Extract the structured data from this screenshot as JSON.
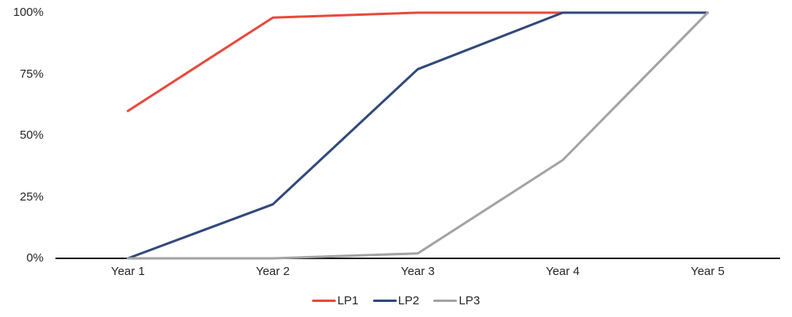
{
  "chart_data": {
    "type": "line",
    "title": "",
    "xlabel": "",
    "ylabel": "",
    "categories": [
      "Year 1",
      "Year 2",
      "Year 3",
      "Year 4",
      "Year 5"
    ],
    "series": [
      {
        "name": "LP1",
        "color": "#E74A3B",
        "values": [
          60,
          98,
          100,
          100,
          100
        ]
      },
      {
        "name": "LP2",
        "color": "#31497A",
        "values": [
          0,
          22,
          77,
          100,
          100
        ]
      },
      {
        "name": "LP3",
        "color": "#A3A3A3",
        "values": [
          0,
          0,
          2,
          40,
          100
        ]
      }
    ],
    "y_ticks": [
      "100%",
      "75%",
      "50%",
      "25%",
      "0%"
    ],
    "y_tick_values": [
      100,
      75,
      50,
      25,
      0
    ],
    "ylim": [
      0,
      100
    ],
    "grid": false,
    "legend_position": "bottom",
    "axis_color": "#1A1A1A",
    "text_color": "#262626",
    "background_color": "#FFFFFF",
    "line_width": 3
  }
}
